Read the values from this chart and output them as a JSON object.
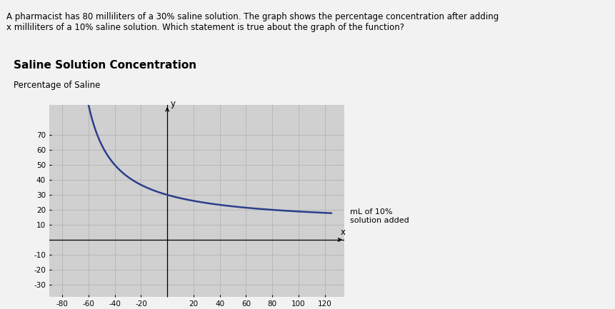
{
  "title": "Saline Solution Concentration",
  "ylabel": "Percentage of Saline",
  "xlabel_annotation": "mL of 10%\nsolution added",
  "question_text": "A pharmacist has 80 milliliters of a 30% saline solution. The graph shows the percentage concentration after adding\nx milliliters of a 10% saline solution. Which statement is true about the graph of the function?",
  "page_bg": "#f2f2f2",
  "plot_bg": "#d0d0d0",
  "grid_color": "#b8b8b8",
  "line_color": "#2b3f8c",
  "line_width": 1.8,
  "xlim": [
    -90,
    135
  ],
  "ylim": [
    -38,
    90
  ],
  "xticks": [
    -80,
    -60,
    -40,
    -20,
    20,
    40,
    60,
    80,
    100,
    120
  ],
  "yticks": [
    -30,
    -20,
    -10,
    10,
    20,
    30,
    40,
    50,
    60,
    70
  ],
  "saline_initial_ml": 80,
  "saline_initial_pct": 0.3,
  "saline_added_pct": 0.1,
  "title_fontsize": 11,
  "label_fontsize": 8.5,
  "tick_fontsize": 7.5,
  "question_fontsize": 8.5
}
